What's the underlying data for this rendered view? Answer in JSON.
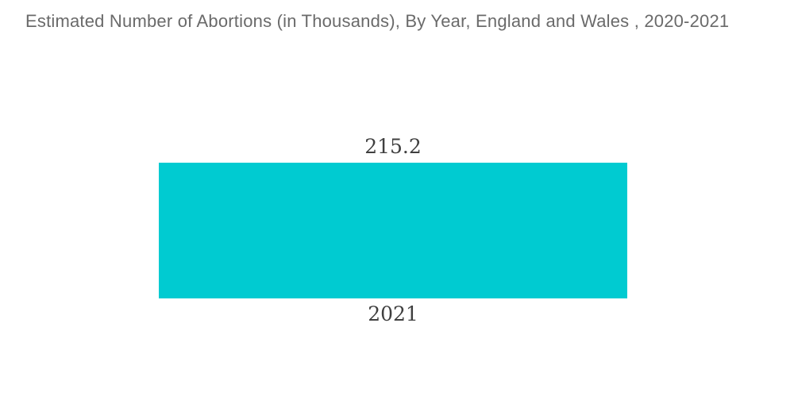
{
  "header": {
    "title": "Estimated Number of Abortions (in Thousands), By Year, England and Wales , 2020-2021"
  },
  "chart_data": {
    "type": "bar",
    "title": "Estimated Number of Abortions (in Thousands), By Year, England and Wales , 2020-2021",
    "categories": [
      "2021"
    ],
    "values": [
      215.2
    ],
    "value_labels": [
      "215.2"
    ],
    "xlabel": "",
    "ylabel": "",
    "ylim": [
      0,
      215.2
    ],
    "grid": false,
    "legend_position": "none",
    "orientation": "vertical",
    "bar_color": "#00cbd1",
    "label_color": "#3f3f3f",
    "title_color": "#6a6a6a",
    "background_color": "#ffffff"
  }
}
